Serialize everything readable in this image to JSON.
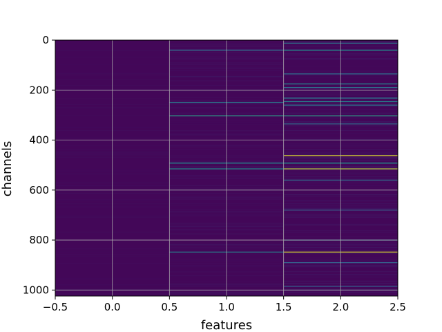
{
  "chart_data": {
    "type": "heatmap",
    "colormap": "viridis",
    "xlabel": "features",
    "ylabel": "channels",
    "xlim": [
      -0.5,
      2.5
    ],
    "ylim": [
      1024,
      0
    ],
    "y_inverted": true,
    "grid": true,
    "columns": [
      0,
      1,
      2
    ],
    "xticks": [
      -0.5,
      0.0,
      0.5,
      1.0,
      1.5,
      2.0,
      2.5
    ],
    "xtick_labels": [
      "−0.5",
      "0.0",
      "0.5",
      "1.0",
      "1.5",
      "2.0",
      "2.5"
    ],
    "yticks": [
      0,
      200,
      400,
      600,
      800,
      1000
    ],
    "ytick_labels": [
      "0",
      "200",
      "400",
      "600",
      "800",
      "1000"
    ],
    "value_range": [
      0,
      1
    ],
    "background_value": 0.02,
    "highlighted_rows": [
      {
        "feature": 1,
        "channel": 40,
        "value": 0.35
      },
      {
        "feature": 1,
        "channel": 250,
        "value": 0.4
      },
      {
        "feature": 1,
        "channel": 303,
        "value": 0.55
      },
      {
        "feature": 1,
        "channel": 492,
        "value": 0.45
      },
      {
        "feature": 1,
        "channel": 515,
        "value": 0.5
      },
      {
        "feature": 1,
        "channel": 848,
        "value": 0.45
      },
      {
        "feature": 2,
        "channel": 12,
        "value": 0.4
      },
      {
        "feature": 2,
        "channel": 40,
        "value": 0.5
      },
      {
        "feature": 2,
        "channel": 135,
        "value": 0.35
      },
      {
        "feature": 2,
        "channel": 175,
        "value": 0.45
      },
      {
        "feature": 2,
        "channel": 190,
        "value": 0.35
      },
      {
        "feature": 2,
        "channel": 232,
        "value": 0.4
      },
      {
        "feature": 2,
        "channel": 245,
        "value": 0.45
      },
      {
        "feature": 2,
        "channel": 260,
        "value": 0.4
      },
      {
        "feature": 2,
        "channel": 303,
        "value": 0.55
      },
      {
        "feature": 2,
        "channel": 335,
        "value": 0.35
      },
      {
        "feature": 2,
        "channel": 462,
        "value": 0.95
      },
      {
        "feature": 2,
        "channel": 492,
        "value": 0.5
      },
      {
        "feature": 2,
        "channel": 515,
        "value": 0.9
      },
      {
        "feature": 2,
        "channel": 560,
        "value": 0.35
      },
      {
        "feature": 2,
        "channel": 680,
        "value": 0.3
      },
      {
        "feature": 2,
        "channel": 800,
        "value": 0.35
      },
      {
        "feature": 2,
        "channel": 848,
        "value": 0.95
      },
      {
        "feature": 2,
        "channel": 890,
        "value": 0.3
      },
      {
        "feature": 2,
        "channel": 985,
        "value": 0.3
      }
    ]
  }
}
